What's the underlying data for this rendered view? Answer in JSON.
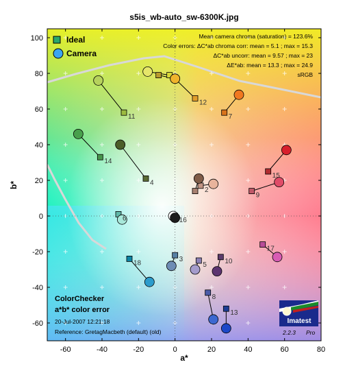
{
  "chart_data": {
    "type": "scatter",
    "title": "s5is_wb-auto_sw-6300K.jpg",
    "xlabel": "a*",
    "ylabel": "b*",
    "xlim": [
      -70,
      80
    ],
    "ylim": [
      -70,
      105
    ],
    "xticks": [
      -60,
      -40,
      -20,
      0,
      20,
      40,
      60,
      80
    ],
    "yticks": [
      -60,
      -40,
      -20,
      0,
      20,
      40,
      60,
      80,
      100
    ],
    "grid": true,
    "legend_position": "top-left",
    "legend": {
      "ideal": "Ideal",
      "camera": "Camera"
    },
    "annotations": {
      "line1": "Mean camera chroma (saturation) = 123.6%",
      "line2": "Color errors:  ΔC*ab chroma corr:  mean = 5.1 ;  max = 15.3",
      "line3": "ΔC*ab uncorr:  mean = 9.57 ;  max = 23",
      "line4": "ΔE*ab:  mean = 13.3 ;  max = 24.9",
      "line5": "sRGB"
    },
    "footer": {
      "line1": "ColorChecker",
      "line2": "a*b* color error",
      "date": "20-Jul-2007 12:21:18",
      "reference": "Reference: GretagMacbeth (default) (old)"
    },
    "logo": {
      "text": "Imatest",
      "version": "2.2.3",
      "edition": "Pro"
    },
    "patches": [
      {
        "label": "",
        "ideal": [
          -9,
          79
        ],
        "camera": [
          0,
          77
        ],
        "ideal_color": "#b99a2c",
        "camera_color": "#e0c040"
      },
      {
        "label": "",
        "ideal": [
          -3,
          79
        ],
        "camera": [
          -15,
          81
        ],
        "ideal_color": "#d8d838",
        "camera_color": "#e6e66a"
      },
      {
        "label": "2",
        "ideal": [
          14,
          17
        ],
        "camera": [
          21,
          18
        ],
        "ideal_color": "#c29484",
        "camera_color": "#e8b49c"
      },
      {
        "label": "3",
        "ideal": [
          0,
          -22
        ],
        "camera": [
          -2,
          -28
        ],
        "ideal_color": "#5880a4",
        "camera_color": "#6e8cb4"
      },
      {
        "label": "4",
        "ideal": [
          -16,
          21
        ],
        "camera": [
          -30,
          40
        ],
        "ideal_color": "#5a6a34",
        "camera_color": "#4c5e28"
      },
      {
        "label": "5",
        "ideal": [
          13,
          -25
        ],
        "camera": [
          11,
          -30
        ],
        "ideal_color": "#8a80b4",
        "camera_color": "#a49ccc"
      },
      {
        "label": "6",
        "ideal": [
          -31,
          1
        ],
        "camera": [
          -29,
          -2
        ],
        "ideal_color": "#60b8a8",
        "camera_color": "#a8e8da"
      },
      {
        "label": "7",
        "ideal": [
          27,
          58
        ],
        "camera": [
          35,
          68
        ],
        "ideal_color": "#d8741c",
        "camera_color": "#f07820"
      },
      {
        "label": "8",
        "ideal": [
          18,
          -43
        ],
        "camera": [
          21,
          -58
        ],
        "ideal_color": "#4c5ca8",
        "camera_color": "#3c68d0"
      },
      {
        "label": "9",
        "ideal": [
          42,
          14
        ],
        "camera": [
          57,
          19
        ],
        "ideal_color": "#c05868",
        "camera_color": "#e04c68"
      },
      {
        "label": "10",
        "ideal": [
          25,
          -23
        ],
        "camera": [
          23,
          -31
        ],
        "ideal_color": "#5c3c6c",
        "camera_color": "#5c3470"
      },
      {
        "label": "11",
        "ideal": [
          -28,
          58
        ],
        "camera": [
          -42,
          76
        ],
        "ideal_color": "#9cba40",
        "camera_color": "#b6d25c"
      },
      {
        "label": "12",
        "ideal": [
          11,
          66
        ],
        "camera": [
          0,
          77
        ],
        "ideal_color": "#e09c2c",
        "camera_color": "#f0b42c"
      },
      {
        "label": "13",
        "ideal": [
          28,
          -52
        ],
        "camera": [
          28,
          -63
        ],
        "ideal_color": "#1c3c94",
        "camera_color": "#1c48c8"
      },
      {
        "label": "14",
        "ideal": [
          -41,
          33
        ],
        "camera": [
          -53,
          46
        ],
        "ideal_color": "#48944c",
        "camera_color": "#48a04c"
      },
      {
        "label": "15",
        "ideal": [
          51,
          25
        ],
        "camera": [
          61,
          37
        ],
        "ideal_color": "#b02c30",
        "camera_color": "#d8202c"
      },
      {
        "label": "16",
        "ideal": [
          0,
          0
        ],
        "camera": [
          -1,
          0
        ],
        "ideal_color": "#f0f0f0",
        "camera_color": "#ffffff"
      },
      {
        "label": "17",
        "ideal": [
          48,
          -16
        ],
        "camera": [
          56,
          -23
        ],
        "ideal_color": "#b84c98",
        "camera_color": "#d85cb4"
      },
      {
        "label": "18",
        "ideal": [
          -25,
          -24
        ],
        "camera": [
          -14,
          -37
        ],
        "ideal_color": "#0c84a4",
        "camera_color": "#2c9ccc"
      },
      {
        "label": "",
        "ideal": [
          11,
          14
        ],
        "camera": [
          13,
          21
        ],
        "ideal_color": "#a88070",
        "camera_color": "#805c48"
      },
      {
        "label": "",
        "ideal": [
          -1,
          0
        ],
        "camera": [
          0,
          -1
        ],
        "ideal_color": "#202020",
        "camera_color": "#1c1c1c"
      }
    ]
  }
}
